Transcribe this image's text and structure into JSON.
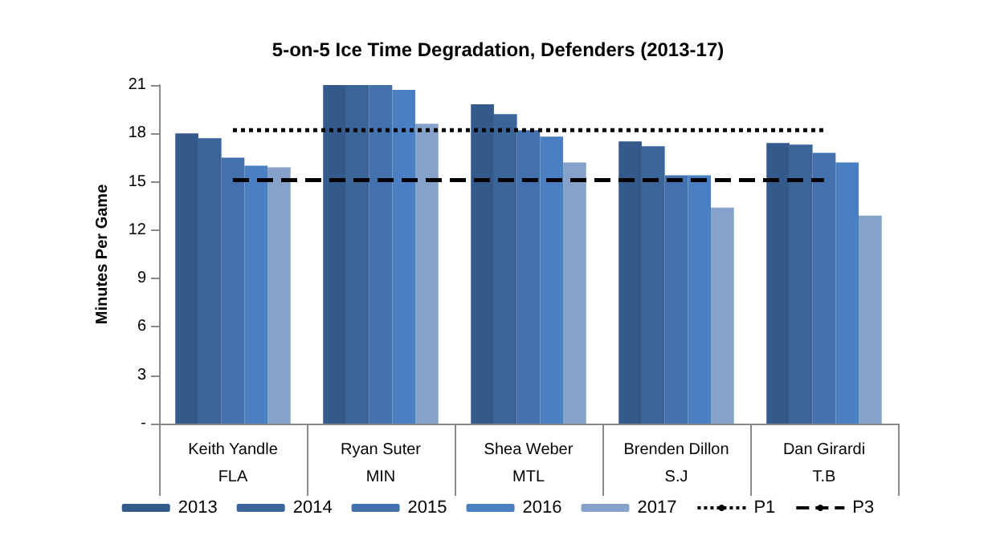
{
  "chart_data": {
    "type": "bar",
    "title": "5-on-5 Ice Time Degradation, Defenders (2013-17)",
    "ylabel": "Minutes Per Game",
    "categories": [
      "Keith Yandle\nFLA",
      "Ryan Suter\nMIN",
      "Shea Weber\nMTL",
      "Brenden Dillon\nS.J",
      "Dan Girardi\nT.B"
    ],
    "series": [
      {
        "name": "2013",
        "color": "#335a8a",
        "values": [
          18.0,
          21.0,
          19.8,
          17.5,
          17.4
        ]
      },
      {
        "name": "2014",
        "color": "#3b6498",
        "values": [
          17.7,
          21.0,
          19.2,
          17.2,
          17.3
        ]
      },
      {
        "name": "2015",
        "color": "#4371ae",
        "values": [
          16.5,
          21.0,
          18.2,
          15.4,
          16.8
        ]
      },
      {
        "name": "2016",
        "color": "#4a7fc2",
        "values": [
          16.0,
          20.7,
          17.8,
          15.4,
          16.2
        ]
      },
      {
        "name": "2017",
        "color": "#86a2cb",
        "values": [
          15.9,
          18.6,
          16.2,
          13.4,
          12.9
        ]
      },
      {
        "name": "P1",
        "type": "line",
        "color": "#000000",
        "line_style": "dotted",
        "marker": "none",
        "values": [
          18.2,
          18.2,
          18.2,
          18.2,
          18.2
        ]
      },
      {
        "name": "P3",
        "type": "line",
        "color": "#000000",
        "line_style": "dashed",
        "marker": "none",
        "values": [
          15.1,
          15.1,
          15.1,
          15.1,
          15.1
        ]
      }
    ],
    "ylim": [
      0,
      21
    ],
    "yticks": [
      {
        "value": 0,
        "label": "-"
      },
      3,
      6,
      9,
      12,
      15,
      18,
      21
    ],
    "grid": false,
    "legend": "bottom"
  }
}
